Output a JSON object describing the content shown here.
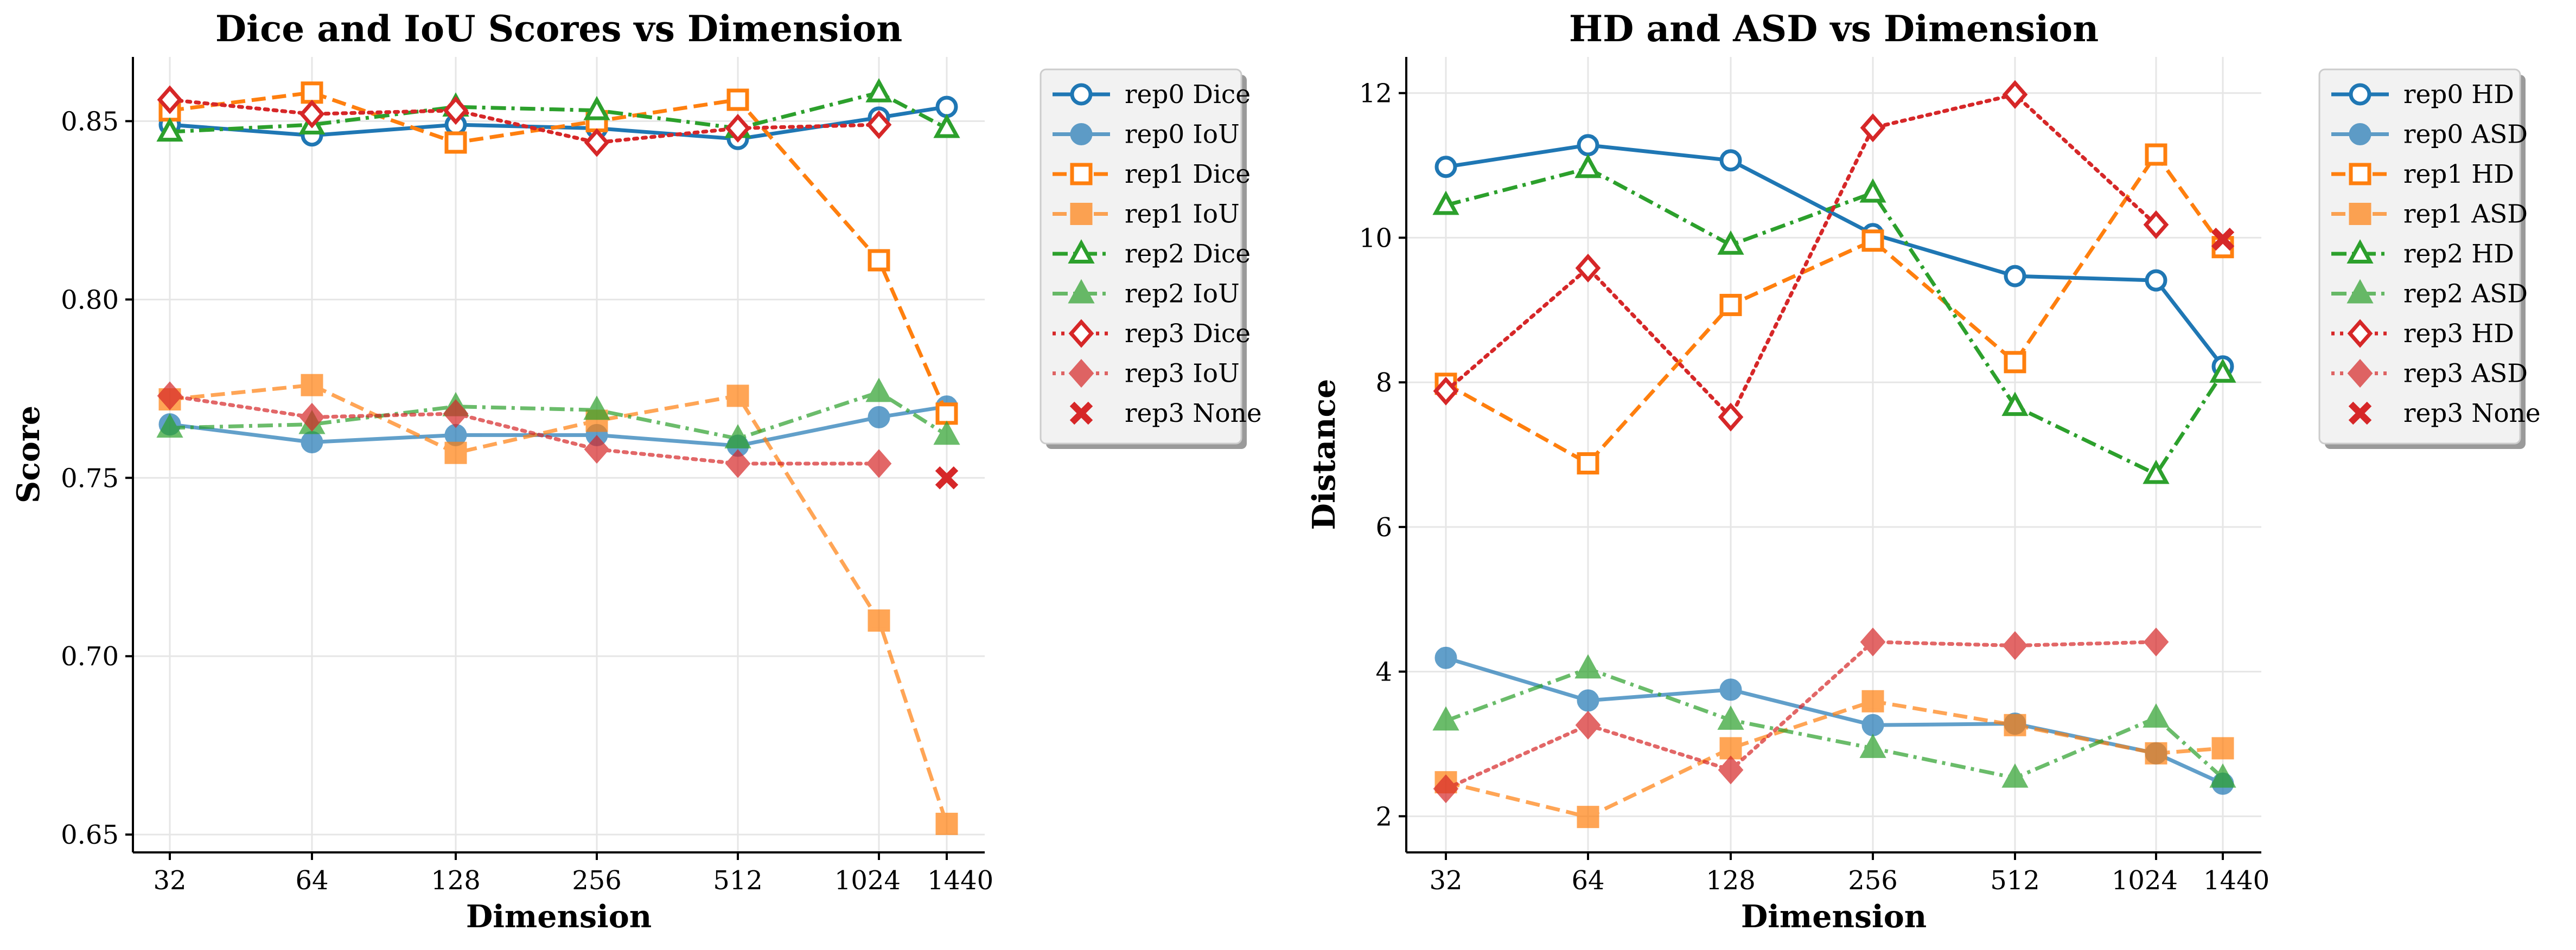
{
  "chart_data": [
    {
      "type": "line",
      "title": "Dice and IoU Scores vs Dimension",
      "xlabel": "Dimension",
      "ylabel": "Score",
      "categories": [
        "32",
        "64",
        "128",
        "256",
        "512",
        "1024",
        "1440"
      ],
      "x": [
        32,
        64,
        128,
        256,
        512,
        1024,
        1440
      ],
      "ylim": [
        0.645,
        0.868
      ],
      "yticks": [
        "0.65",
        "0.70",
        "0.75",
        "0.80",
        "0.85"
      ],
      "ytick_values": [
        0.65,
        0.7,
        0.75,
        0.8,
        0.85
      ],
      "grid": true,
      "legend_position": "outside-right",
      "series": [
        {
          "name": "rep0 Dice",
          "color": "#1f77b4",
          "dash": "solid",
          "marker": "circle",
          "filled": false,
          "alpha": 1.0,
          "values": [
            0.849,
            0.846,
            0.849,
            0.848,
            0.845,
            0.851,
            0.854
          ]
        },
        {
          "name": "rep0 IoU",
          "color": "#1f77b4",
          "dash": "solid",
          "marker": "circle",
          "filled": true,
          "alpha": 0.7,
          "values": [
            0.765,
            0.76,
            0.762,
            0.762,
            0.759,
            0.767,
            0.77
          ]
        },
        {
          "name": "rep1 Dice",
          "color": "#ff7f0e",
          "dash": "dashed",
          "marker": "square",
          "filled": false,
          "alpha": 1.0,
          "values": [
            0.853,
            0.858,
            0.844,
            0.85,
            0.856,
            0.811,
            0.768
          ]
        },
        {
          "name": "rep1 IoU",
          "color": "#ff7f0e",
          "dash": "dashed",
          "marker": "square",
          "filled": true,
          "alpha": 0.7,
          "values": [
            0.772,
            0.776,
            0.757,
            0.766,
            0.773,
            0.71,
            0.653
          ]
        },
        {
          "name": "rep2 Dice",
          "color": "#2ca02c",
          "dash": "dashdot",
          "marker": "triangle",
          "filled": false,
          "alpha": 1.0,
          "values": [
            0.847,
            0.849,
            0.854,
            0.853,
            0.848,
            0.858,
            0.848
          ]
        },
        {
          "name": "rep2 IoU",
          "color": "#2ca02c",
          "dash": "dashdot",
          "marker": "triangle",
          "filled": true,
          "alpha": 0.7,
          "values": [
            0.764,
            0.765,
            0.77,
            0.769,
            0.761,
            0.774,
            0.762
          ]
        },
        {
          "name": "rep3 Dice",
          "color": "#d62728",
          "dash": "dotted",
          "marker": "diamond",
          "filled": false,
          "alpha": 1.0,
          "values": [
            0.856,
            0.852,
            0.853,
            0.844,
            0.848,
            0.849,
            null
          ]
        },
        {
          "name": "rep3 IoU",
          "color": "#d62728",
          "dash": "dotted",
          "marker": "diamond",
          "filled": true,
          "alpha": 0.7,
          "values": [
            0.773,
            0.767,
            0.768,
            0.758,
            0.754,
            0.754,
            null
          ]
        },
        {
          "name": "rep3 None",
          "color": "#d62728",
          "dash": "none",
          "marker": "x",
          "filled": true,
          "alpha": 1.0,
          "values": [
            null,
            null,
            null,
            null,
            null,
            null,
            0.75
          ]
        }
      ]
    },
    {
      "type": "line",
      "title": "HD and ASD vs Dimension",
      "xlabel": "Dimension",
      "ylabel": "Distance",
      "categories": [
        "32",
        "64",
        "128",
        "256",
        "512",
        "1024",
        "1440"
      ],
      "x": [
        32,
        64,
        128,
        256,
        512,
        1024,
        1440
      ],
      "ylim": [
        1.5,
        12.5
      ],
      "yticks": [
        "2",
        "4",
        "6",
        "8",
        "10",
        "12"
      ],
      "ytick_values": [
        2,
        4,
        6,
        8,
        10,
        12
      ],
      "grid": true,
      "legend_position": "outside-right",
      "series": [
        {
          "name": "rep0 HD",
          "color": "#1f77b4",
          "dash": "solid",
          "marker": "circle",
          "filled": false,
          "alpha": 1.0,
          "values": [
            10.98,
            11.28,
            11.07,
            10.05,
            9.47,
            9.41,
            8.22
          ]
        },
        {
          "name": "rep0 ASD",
          "color": "#1f77b4",
          "dash": "solid",
          "marker": "circle",
          "filled": true,
          "alpha": 0.7,
          "values": [
            4.19,
            3.6,
            3.75,
            3.26,
            3.28,
            2.87,
            2.45
          ]
        },
        {
          "name": "rep1 HD",
          "color": "#ff7f0e",
          "dash": "dashed",
          "marker": "square",
          "filled": false,
          "alpha": 1.0,
          "values": [
            7.98,
            6.88,
            9.07,
            9.96,
            8.28,
            11.15,
            9.87
          ]
        },
        {
          "name": "rep1 ASD",
          "color": "#ff7f0e",
          "dash": "dashed",
          "marker": "square",
          "filled": true,
          "alpha": 0.7,
          "values": [
            2.47,
            1.99,
            2.94,
            3.59,
            3.26,
            2.87,
            2.94
          ]
        },
        {
          "name": "rep2 HD",
          "color": "#2ca02c",
          "dash": "dashdot",
          "marker": "triangle",
          "filled": false,
          "alpha": 1.0,
          "values": [
            10.45,
            10.96,
            9.9,
            10.62,
            7.67,
            6.73,
            8.13
          ]
        },
        {
          "name": "rep2 ASD",
          "color": "#2ca02c",
          "dash": "dashdot",
          "marker": "triangle",
          "filled": true,
          "alpha": 0.7,
          "values": [
            3.32,
            4.04,
            3.33,
            2.94,
            2.53,
            3.36,
            2.53
          ]
        },
        {
          "name": "rep3 HD",
          "color": "#d62728",
          "dash": "dotted",
          "marker": "diamond",
          "filled": false,
          "alpha": 1.0,
          "values": [
            7.88,
            9.58,
            7.52,
            11.52,
            11.98,
            10.18,
            null
          ]
        },
        {
          "name": "rep3 ASD",
          "color": "#d62728",
          "dash": "dotted",
          "marker": "diamond",
          "filled": true,
          "alpha": 0.7,
          "values": [
            2.38,
            3.26,
            2.64,
            4.41,
            4.36,
            4.41,
            null
          ]
        },
        {
          "name": "rep3 None",
          "color": "#d62728",
          "dash": "none",
          "marker": "x",
          "filled": true,
          "alpha": 1.0,
          "values": [
            null,
            null,
            null,
            null,
            null,
            null,
            9.98
          ]
        }
      ]
    }
  ]
}
